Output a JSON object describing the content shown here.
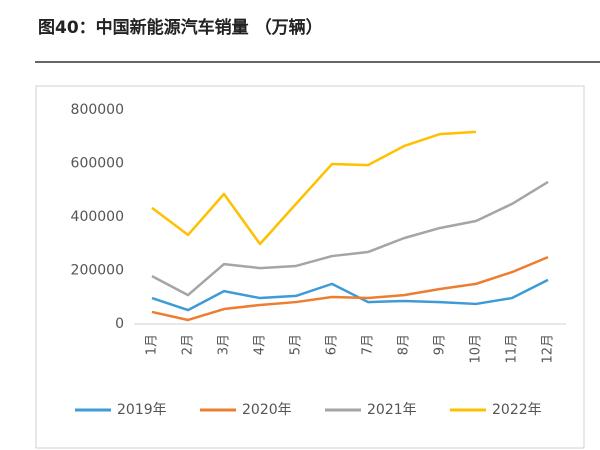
{
  "chart_data": {
    "type": "line",
    "title": "图40：中国新能源汽车销量 （万辆）",
    "categories": [
      "1月",
      "2月",
      "3月",
      "4月",
      "5月",
      "6月",
      "7月",
      "8月",
      "9月",
      "10月",
      "11月",
      "12月"
    ],
    "series": [
      {
        "name": "2019年",
        "color": "#3e9bd8",
        "values": [
          97000,
          52000,
          123000,
          97000,
          105000,
          150000,
          82000,
          86000,
          82000,
          75000,
          97000,
          165000
        ]
      },
      {
        "name": "2020年",
        "color": "#ed7d31",
        "values": [
          45000,
          15000,
          56000,
          71000,
          82000,
          101000,
          97000,
          108000,
          131000,
          150000,
          194000,
          250000
        ]
      },
      {
        "name": "2021年",
        "color": "#a5a5a5",
        "values": [
          179000,
          108000,
          224000,
          209000,
          217000,
          254000,
          269000,
          321000,
          359000,
          385000,
          449000,
          531000
        ]
      },
      {
        "name": "2022年",
        "color": "#ffc000",
        "values": [
          434000,
          333000,
          486000,
          299000,
          449000,
          598000,
          594000,
          665000,
          710000,
          718000,
          null,
          null
        ]
      }
    ],
    "ylim": [
      0,
      800000
    ],
    "yticks": [
      0,
      200000,
      400000,
      600000,
      800000
    ],
    "grid": false,
    "legend": "bottom"
  }
}
